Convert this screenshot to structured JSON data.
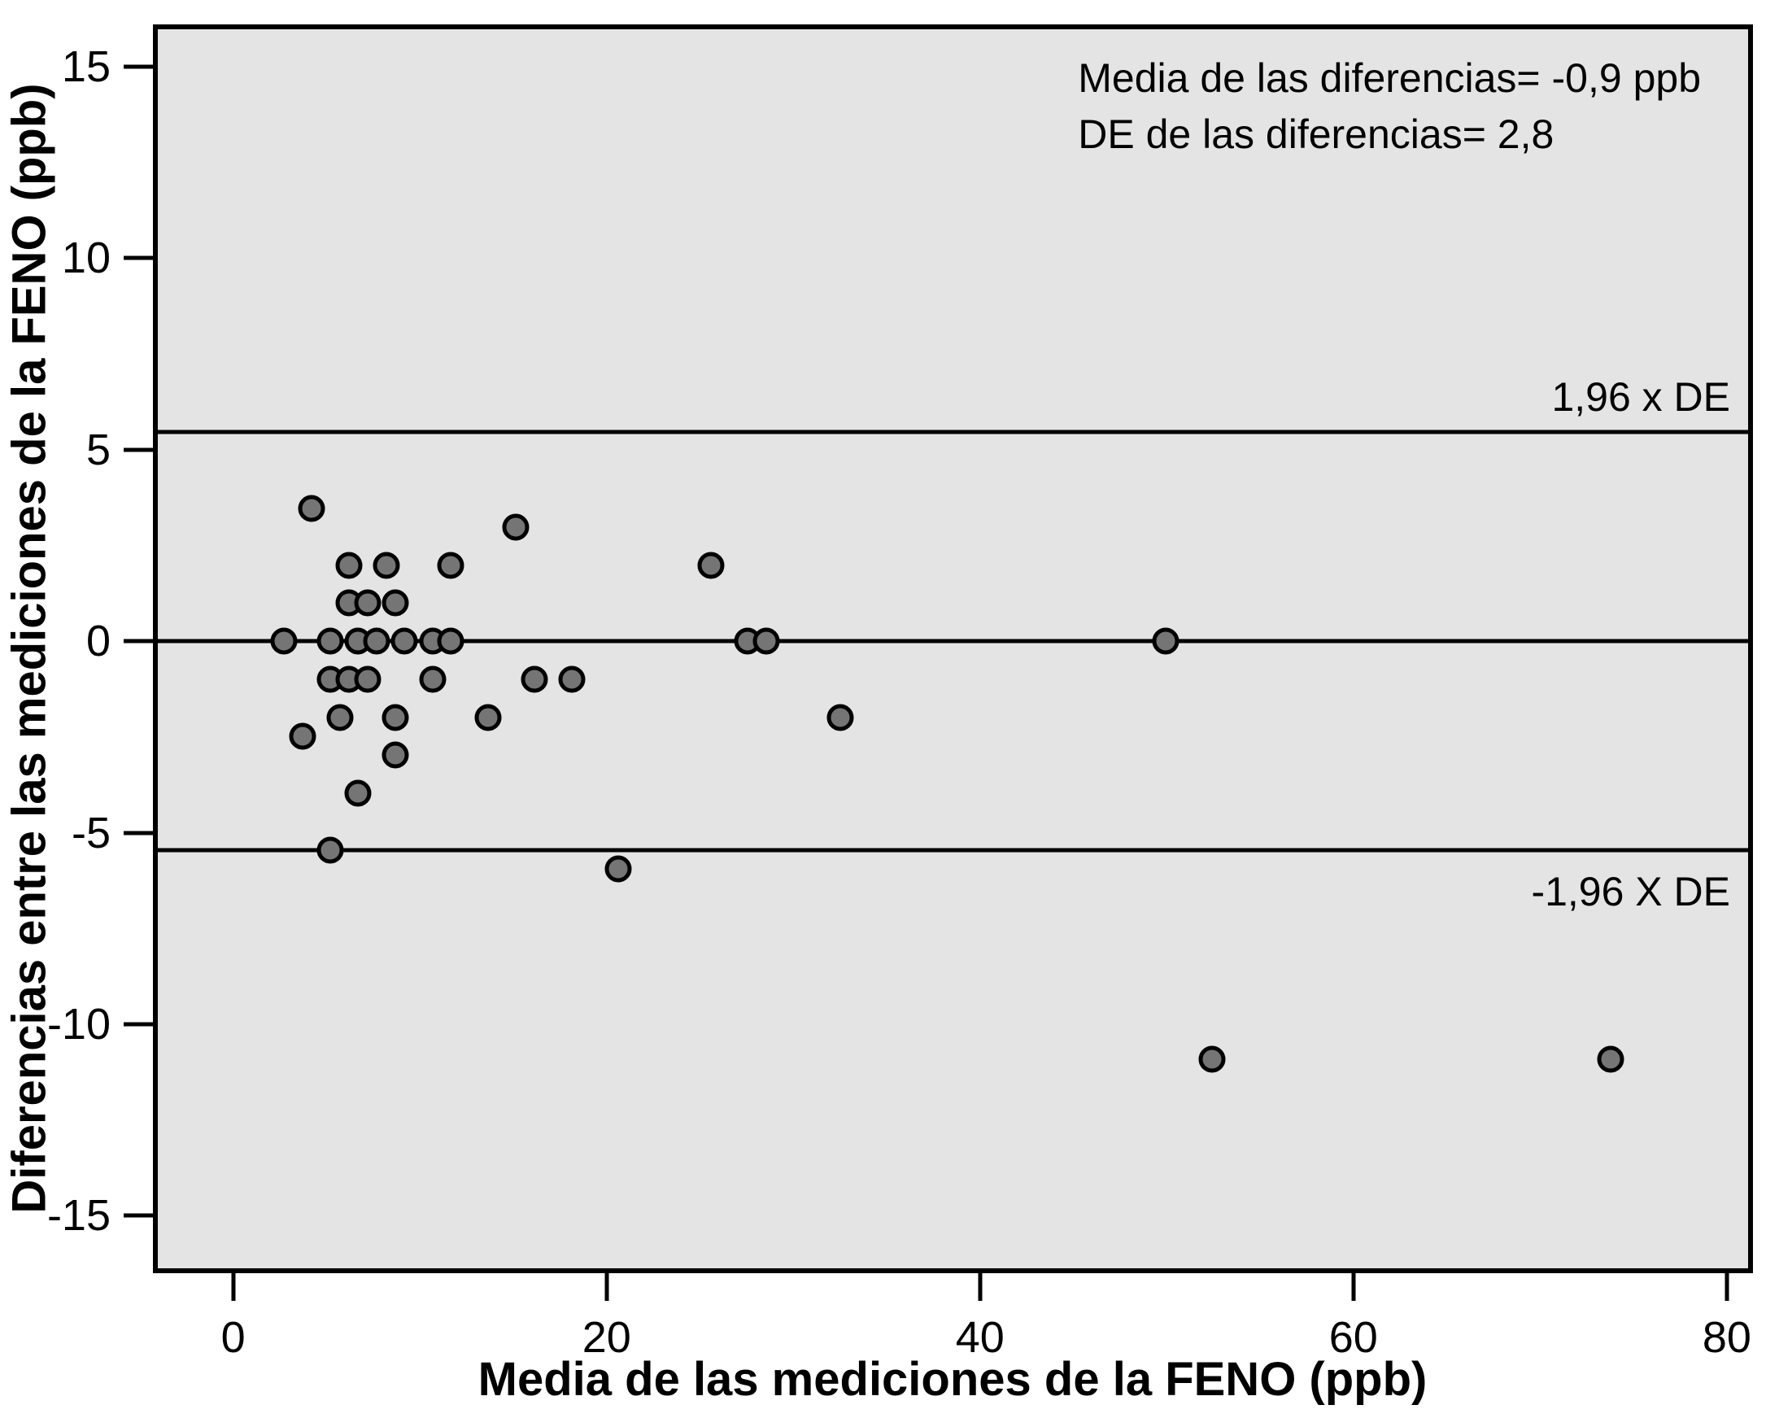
{
  "annotation": {
    "line1": "Media de las diferencias= -0,9 ppb",
    "line2": "DE de las diferencias= 2,8"
  },
  "axes": {
    "x": {
      "label": "Media de las mediciones de la FENO (ppb)",
      "ticks": [
        0,
        20,
        40,
        60,
        80
      ],
      "min": -4.3,
      "max": 81.4
    },
    "y": {
      "label": "Diferencias entre las mediciones de la FENO (ppb)",
      "ticks": [
        15,
        10,
        5,
        0,
        -5,
        -10,
        -15
      ],
      "min": -16.5,
      "max": 16.1
    }
  },
  "chart_data": {
    "type": "scatter",
    "title": "",
    "xlabel": "Media de las mediciones de la FENO (ppb)",
    "ylabel": "Diferencias entre las mediciones de la FENO (ppb)",
    "xlim": [
      -4.3,
      81.4
    ],
    "ylim": [
      -16.5,
      16.1
    ],
    "grid": false,
    "legend": false,
    "series": [
      {
        "name": "diferencias",
        "points": [
          [
            4,
            3.5
          ],
          [
            15,
            3
          ],
          [
            6,
            2
          ],
          [
            8,
            2
          ],
          [
            11.5,
            2
          ],
          [
            25.5,
            2
          ],
          [
            6,
            1
          ],
          [
            7,
            1
          ],
          [
            8.5,
            1
          ],
          [
            2.5,
            0
          ],
          [
            5,
            0
          ],
          [
            6.5,
            0
          ],
          [
            7.5,
            0
          ],
          [
            9,
            0
          ],
          [
            10.5,
            0
          ],
          [
            11.5,
            0
          ],
          [
            27.5,
            0
          ],
          [
            28.5,
            0
          ],
          [
            50,
            0
          ],
          [
            5,
            -1
          ],
          [
            6,
            -1
          ],
          [
            7,
            -1
          ],
          [
            10.5,
            -1
          ],
          [
            16,
            -1
          ],
          [
            18,
            -1
          ],
          [
            5.5,
            -2
          ],
          [
            8.5,
            -2
          ],
          [
            13.5,
            -2
          ],
          [
            32.5,
            -2
          ],
          [
            3.5,
            -2.5
          ],
          [
            8.5,
            -3
          ],
          [
            6.5,
            -4
          ],
          [
            5,
            -5.5
          ],
          [
            20.5,
            -6
          ],
          [
            52.5,
            -11
          ],
          [
            74,
            -11
          ]
        ]
      }
    ],
    "reference_lines": [
      {
        "value": 0,
        "label": ""
      },
      {
        "value": 5.5,
        "label": "1,96 x DE",
        "label_position": "above"
      },
      {
        "value": -5.5,
        "label": "-1,96 X DE",
        "label_position": "below"
      }
    ],
    "stats": {
      "mean_diff_ppb": -0.9,
      "sd_diff_ppb": 2.8
    }
  },
  "colors": {
    "page_bg": "#ffffff",
    "plot_bg": "#e4e4e4",
    "point_fill": "#757575",
    "point_stroke": "#000000",
    "line": "#000000",
    "text": "#000000"
  }
}
